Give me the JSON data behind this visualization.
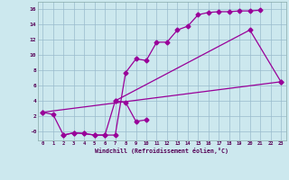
{
  "xlabel": "Windchill (Refroidissement éolien,°C)",
  "background_color": "#cce8ee",
  "line_color": "#990099",
  "grid_color": "#99bbcc",
  "xlim": [
    -0.5,
    23.5
  ],
  "ylim": [
    -1.2,
    17.0
  ],
  "xticks": [
    0,
    1,
    2,
    3,
    4,
    5,
    6,
    7,
    8,
    9,
    10,
    11,
    12,
    13,
    14,
    15,
    16,
    17,
    18,
    19,
    20,
    21,
    22,
    23
  ],
  "yticks": [
    0,
    2,
    4,
    6,
    8,
    10,
    12,
    14,
    16
  ],
  "ytick_labels": [
    "-0",
    "2",
    "4",
    "6",
    "8",
    "10",
    "12",
    "14",
    "16"
  ],
  "line1_x": [
    0,
    1,
    2,
    3,
    4,
    5,
    6,
    7,
    8,
    9,
    10,
    11,
    12,
    13,
    14,
    15,
    16,
    17,
    18,
    19,
    20,
    21
  ],
  "line1_y": [
    2.5,
    2.2,
    -0.5,
    -0.2,
    -0.3,
    -0.5,
    -0.5,
    -0.5,
    7.7,
    9.5,
    9.3,
    11.7,
    11.7,
    13.3,
    13.8,
    15.3,
    15.6,
    15.7,
    15.7,
    15.8,
    15.8,
    15.9
  ],
  "line2_x": [
    2,
    3,
    4,
    5,
    6,
    7,
    8,
    9,
    10
  ],
  "line2_y": [
    -0.5,
    -0.2,
    -0.3,
    -0.5,
    -0.5,
    4.0,
    3.8,
    1.3,
    1.5
  ],
  "line3_x": [
    0,
    23
  ],
  "line3_y": [
    2.5,
    6.5
  ],
  "line4_x": [
    7,
    20,
    23
  ],
  "line4_y": [
    4.0,
    13.3,
    6.5
  ]
}
